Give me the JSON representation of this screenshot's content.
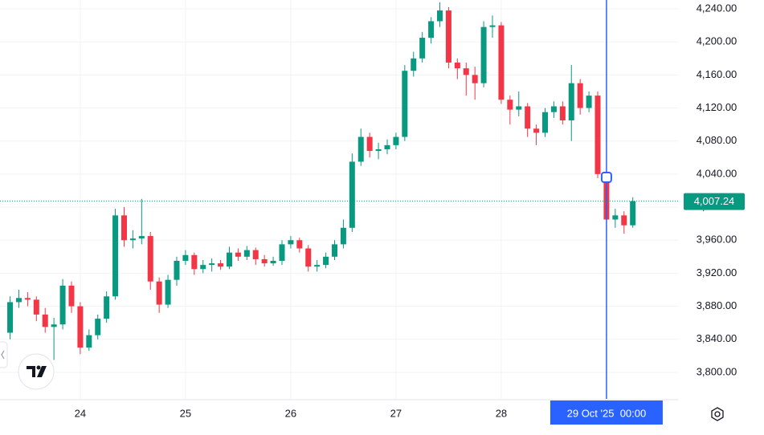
{
  "chart_data": {
    "type": "candlestick",
    "up_color": "#089981",
    "down_color": "#f23645",
    "x": [
      -16,
      -14,
      -12,
      -10,
      -8,
      -6,
      -4,
      -2,
      0,
      2,
      4,
      6,
      8,
      10,
      12,
      14,
      16,
      18,
      20,
      22,
      24,
      26,
      28,
      30,
      32,
      34,
      36,
      38,
      40,
      42,
      44,
      46,
      48,
      50,
      52,
      54,
      56,
      58,
      60,
      62,
      64,
      66,
      68,
      70,
      72,
      74,
      76,
      78,
      80,
      82,
      84,
      86,
      88,
      90,
      92,
      94,
      96,
      98,
      100,
      102,
      104,
      106,
      108,
      110,
      112,
      114,
      116,
      118,
      120,
      122,
      124,
      126
    ],
    "open": [
      3848,
      3885,
      3890,
      3888,
      3870,
      3855,
      3858,
      3905,
      3880,
      3830,
      3845,
      3865,
      3892,
      3990,
      3960,
      3962,
      3965,
      3910,
      3882,
      3912,
      3935,
      3942,
      3925,
      3930,
      3932,
      3928,
      3945,
      3940,
      3948,
      3937,
      3932,
      3935,
      3955,
      3960,
      3950,
      3928,
      3930,
      3940,
      3955,
      3975,
      4055,
      4085,
      4068,
      4070,
      4075,
      4085,
      4165,
      4180,
      4205,
      4225,
      4238,
      4175,
      4168,
      4160,
      4150,
      4218,
      4220,
      4130,
      4118,
      4122,
      4095,
      4090,
      4115,
      4122,
      4105,
      4150,
      4120,
      4135,
      4040,
      3985,
      3990,
      3978
    ],
    "high": [
      3892,
      3900,
      3897,
      3892,
      3878,
      3866,
      3913,
      3910,
      3885,
      3852,
      3870,
      3898,
      3998,
      4000,
      3972,
      4010,
      3970,
      3915,
      3918,
      3940,
      3948,
      3945,
      3936,
      3938,
      3936,
      3952,
      3950,
      3953,
      3951,
      3942,
      3940,
      3960,
      3965,
      3963,
      3954,
      3936,
      3945,
      3960,
      3985,
      4065,
      4095,
      4090,
      4078,
      4082,
      4090,
      4172,
      4188,
      4212,
      4230,
      4248,
      4242,
      4180,
      4175,
      4170,
      4225,
      4232,
      4224,
      4135,
      4140,
      4126,
      4100,
      4120,
      4128,
      4128,
      4172,
      4155,
      4140,
      4140,
      4045,
      3998,
      3995,
      4012
    ],
    "low": [
      3840,
      3878,
      3880,
      3862,
      3848,
      3815,
      3852,
      3872,
      3822,
      3826,
      3840,
      3860,
      3888,
      3952,
      3950,
      3955,
      3900,
      3872,
      3878,
      3905,
      3930,
      3918,
      3920,
      3922,
      3924,
      3925,
      3935,
      3936,
      3930,
      3928,
      3929,
      3930,
      3950,
      3945,
      3922,
      3922,
      3926,
      3936,
      3950,
      3970,
      4050,
      4060,
      4058,
      4064,
      4070,
      4080,
      4158,
      4175,
      4198,
      4218,
      4168,
      4155,
      4135,
      4130,
      4145,
      4205,
      4125,
      4100,
      4110,
      4085,
      4075,
      4085,
      4108,
      4100,
      4080,
      4112,
      4115,
      4035,
      3963,
      3975,
      3968,
      3975
    ],
    "close": [
      3885,
      3890,
      3888,
      3870,
      3855,
      3858,
      3905,
      3880,
      3830,
      3845,
      3865,
      3892,
      3990,
      3960,
      3962,
      3965,
      3910,
      3882,
      3912,
      3935,
      3942,
      3925,
      3930,
      3932,
      3928,
      3945,
      3940,
      3948,
      3937,
      3932,
      3935,
      3955,
      3960,
      3950,
      3928,
      3930,
      3940,
      3955,
      3975,
      4055,
      4085,
      4068,
      4070,
      4075,
      4085,
      4165,
      4180,
      4205,
      4225,
      4238,
      4175,
      4168,
      4160,
      4150,
      4218,
      4220,
      4130,
      4118,
      4122,
      4095,
      4090,
      4115,
      4122,
      4105,
      4150,
      4120,
      4135,
      4040,
      3985,
      3990,
      3978,
      4007.24
    ],
    "xlim": [
      -18.3,
      136.5
    ],
    "xticks": [
      {
        "value": 0,
        "label": "24"
      },
      {
        "value": 24,
        "label": "25"
      },
      {
        "value": 48,
        "label": "26"
      },
      {
        "value": 72,
        "label": "27"
      },
      {
        "value": 96,
        "label": "28"
      }
    ],
    "ylim": [
      3767.9,
      4250.7
    ],
    "yticks": [
      {
        "value": 3800,
        "label": "3,800.00"
      },
      {
        "value": 3840,
        "label": "3,840.00"
      },
      {
        "value": 3880,
        "label": "3,880.00"
      },
      {
        "value": 3920,
        "label": "3,920.00"
      },
      {
        "value": 3960,
        "label": "3,960.00"
      },
      {
        "value": 4000,
        "label": "4,000.00"
      },
      {
        "value": 4040,
        "label": "4,040.00"
      },
      {
        "value": 4080,
        "label": "4,080.00"
      },
      {
        "value": 4120,
        "label": "4,120.00"
      },
      {
        "value": 4160,
        "label": "4,160.00"
      },
      {
        "value": 4200,
        "label": "4,200.00"
      },
      {
        "value": 4240,
        "label": "4,240.00"
      }
    ],
    "grid": true,
    "last_price": {
      "value": 4007.24,
      "label": "4,007.24"
    },
    "crosshair": {
      "x": 120,
      "y": 4036,
      "label": "29 Oct '25  00:00",
      "color": "#2962ff"
    }
  }
}
